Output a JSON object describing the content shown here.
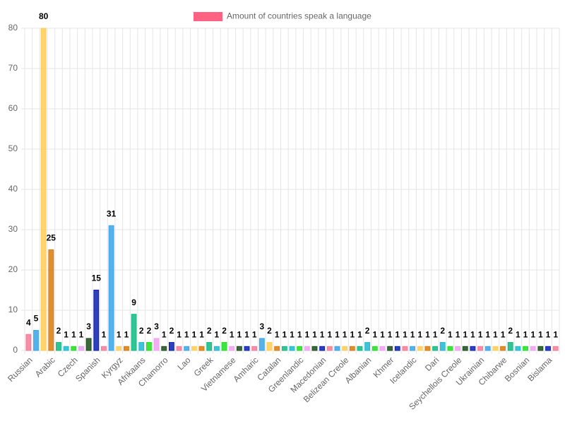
{
  "chart_data": {
    "type": "bar",
    "legend_label": "Amount of countries speak a language",
    "legend_color": "#ff6384",
    "categories": [
      "Russian",
      null,
      null,
      "Arabic",
      null,
      null,
      "Czech",
      null,
      null,
      "Spanish",
      null,
      null,
      "Kyrgyz",
      null,
      null,
      "Afrikaans",
      null,
      null,
      "Chamorro",
      null,
      null,
      "Lao",
      null,
      null,
      "Greek",
      null,
      null,
      "Vietnamese",
      null,
      null,
      "Amharic",
      null,
      null,
      "Catalan",
      null,
      null,
      "Greenlandic",
      null,
      null,
      "Macedonian",
      null,
      null,
      "Belizean Creole",
      null,
      null,
      "Albanian",
      null,
      null,
      "Khmer",
      null,
      null,
      "Icelandic",
      null,
      null,
      "Dari",
      null,
      null,
      "Seychellois Creole",
      null,
      null,
      "Ukrainian",
      null,
      null,
      "Chibarwe",
      null,
      null,
      "Bosnian",
      null,
      null,
      "Bislama",
      null
    ],
    "values": [
      4,
      5,
      80,
      25,
      2,
      1,
      1,
      1,
      3,
      15,
      1,
      31,
      1,
      1,
      9,
      2,
      2,
      3,
      1,
      2,
      1,
      1,
      1,
      1,
      2,
      1,
      2,
      1,
      1,
      1,
      1,
      3,
      2,
      1,
      1,
      1,
      1,
      1,
      1,
      1,
      1,
      1,
      1,
      1,
      1,
      2,
      1,
      1,
      1,
      1,
      1,
      1,
      1,
      1,
      1,
      2,
      1,
      1,
      1,
      1,
      1,
      1,
      1,
      1,
      2,
      1,
      1,
      1,
      1,
      1,
      1
    ],
    "colors": [
      "#f67a96",
      "#3aa5e8",
      "#ffcd56",
      "#d97a0c",
      "#10b981",
      "#20b8d0",
      "#22dd22",
      "#f0a0f0",
      "#1a4d1a",
      "#0a1fb0"
    ],
    "ylim": [
      0,
      80
    ],
    "yticks": [
      0,
      10,
      20,
      30,
      40,
      50,
      60,
      70,
      80
    ],
    "grid": true
  }
}
